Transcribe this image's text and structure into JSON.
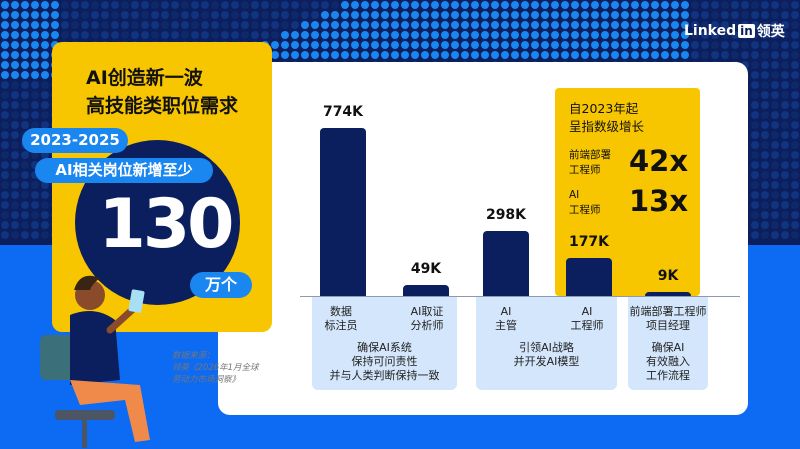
{
  "brand": {
    "logo_text": "Linked",
    "logo_in": "in",
    "logo_cn": "领英"
  },
  "headline": {
    "line1": "AI创造新一波",
    "line2": "高技能类职位需求"
  },
  "highlight": {
    "period": "2023-2025",
    "subtitle": "AI相关岗位新增至少",
    "number": "130",
    "unit": "万个"
  },
  "growth": {
    "title_line1": "自2023年起",
    "title_line2": "呈指数级增长",
    "items": [
      {
        "label_line1": "前端部署",
        "label_line2": "工程师",
        "value": "42x"
      },
      {
        "label_line1": "AI",
        "label_line2": "工程师",
        "value": "13x"
      }
    ]
  },
  "groups": [
    {
      "description": [
        "确保AI系统",
        "保持可问责性",
        "并与人类判断保持一致"
      ]
    },
    {
      "description": [
        "引领AI战略",
        "并开发AI模型"
      ]
    },
    {
      "description": [
        "确保AI",
        "有效融入",
        "工作流程"
      ]
    }
  ],
  "source": {
    "line1": "数据来源：",
    "line2": "领英《2026年1月全球",
    "line3": "劳动力市场洞察》"
  },
  "colors": {
    "navy": "#0b1f5e",
    "yellow": "#f8c600",
    "blue": "#0d6af2",
    "light_blue": "#d3e6fb"
  },
  "chart_data": {
    "type": "bar",
    "categories": [
      [
        "数据",
        "标注员"
      ],
      [
        "AI取证",
        "分析师"
      ],
      [
        "AI",
        "主管"
      ],
      [
        "AI",
        "工程师"
      ],
      [
        "前端部署工程师",
        "项目经理"
      ]
    ],
    "values": [
      774,
      49,
      298,
      177,
      9
    ],
    "data_labels": [
      "774K",
      "49K",
      "298K",
      "177K",
      "9K"
    ],
    "unit": "K"
  }
}
